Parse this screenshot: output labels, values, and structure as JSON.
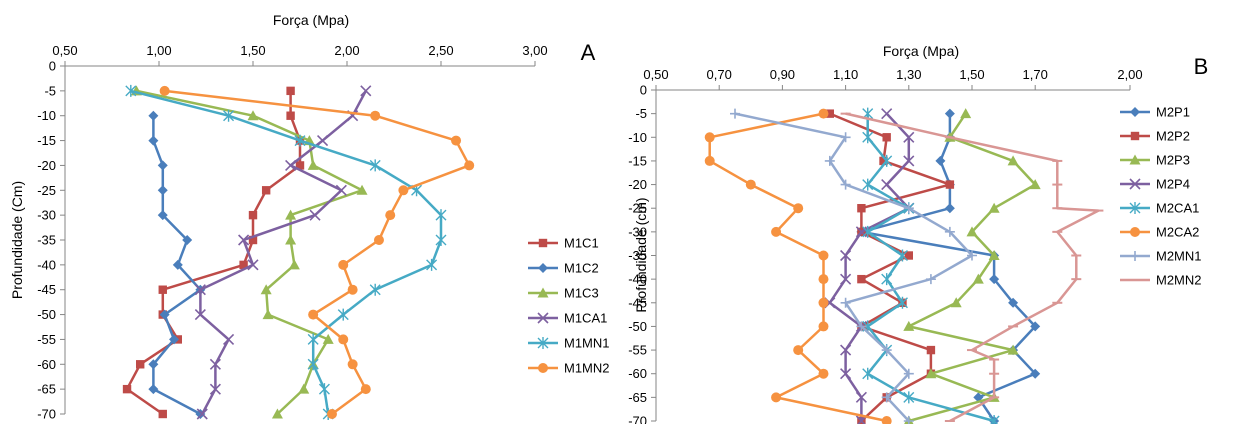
{
  "chart_data": [
    {
      "type": "line",
      "panel_label": "A",
      "xlabel": "Força (Mpa)",
      "ylabel": "Profundidade (Cm)",
      "xlim": [
        0.5,
        3.0
      ],
      "xticks": [
        "0,50",
        "1,00",
        "1,50",
        "2,00",
        "2,50",
        "3,00"
      ],
      "ylim": [
        -70,
        0
      ],
      "yticks": [
        "0",
        "-5",
        "-10",
        "-15",
        "-20",
        "-25",
        "-30",
        "-35",
        "-40",
        "-45",
        "-50",
        "-55",
        "-60",
        "-65",
        "-70"
      ],
      "legend_position": "right",
      "series": [
        {
          "name": "M1C1",
          "color": "#be4b48",
          "marker": "square",
          "points": [
            [
              1.7,
              -5
            ],
            [
              1.7,
              -10
            ],
            [
              1.75,
              -15
            ],
            [
              1.75,
              -20
            ],
            [
              1.57,
              -25
            ],
            [
              1.5,
              -30
            ],
            [
              1.5,
              -35
            ],
            [
              1.45,
              -40
            ],
            [
              1.02,
              -45
            ],
            [
              1.02,
              -50
            ],
            [
              1.1,
              -55
            ],
            [
              0.9,
              -60
            ],
            [
              0.83,
              -65
            ],
            [
              1.02,
              -70
            ]
          ]
        },
        {
          "name": "M1C2",
          "color": "#4a7ebb",
          "marker": "diamond",
          "points": [
            [
              0.97,
              -10
            ],
            [
              0.97,
              -15
            ],
            [
              1.02,
              -20
            ],
            [
              1.02,
              -25
            ],
            [
              1.02,
              -30
            ],
            [
              1.15,
              -35
            ],
            [
              1.1,
              -40
            ],
            [
              1.22,
              -45
            ],
            [
              1.03,
              -50
            ],
            [
              1.08,
              -55
            ],
            [
              0.97,
              -60
            ],
            [
              0.97,
              -65
            ],
            [
              1.22,
              -70
            ]
          ]
        },
        {
          "name": "M1C3",
          "color": "#98b954",
          "marker": "triangle",
          "points": [
            [
              0.88,
              -5
            ],
            [
              1.5,
              -10
            ],
            [
              1.8,
              -15
            ],
            [
              1.82,
              -20
            ],
            [
              2.08,
              -25
            ],
            [
              1.7,
              -30
            ],
            [
              1.7,
              -35
            ],
            [
              1.72,
              -40
            ],
            [
              1.57,
              -45
            ],
            [
              1.58,
              -50
            ],
            [
              1.9,
              -55
            ],
            [
              1.82,
              -60
            ],
            [
              1.77,
              -65
            ],
            [
              1.63,
              -70
            ]
          ]
        },
        {
          "name": "M1CA1",
          "color": "#7d60a0",
          "marker": "x",
          "points": [
            [
              2.1,
              -5
            ],
            [
              2.03,
              -10
            ],
            [
              1.87,
              -15
            ],
            [
              1.7,
              -20
            ],
            [
              1.97,
              -25
            ],
            [
              1.83,
              -30
            ],
            [
              1.45,
              -35
            ],
            [
              1.5,
              -40
            ],
            [
              1.22,
              -45
            ],
            [
              1.22,
              -50
            ],
            [
              1.37,
              -55
            ],
            [
              1.3,
              -60
            ],
            [
              1.3,
              -65
            ],
            [
              1.23,
              -70
            ]
          ]
        },
        {
          "name": "M1MN1",
          "color": "#46aac5",
          "marker": "star",
          "points": [
            [
              0.85,
              -5
            ],
            [
              1.37,
              -10
            ],
            [
              1.75,
              -15
            ],
            [
              2.15,
              -20
            ],
            [
              2.37,
              -25
            ],
            [
              2.5,
              -30
            ],
            [
              2.5,
              -35
            ],
            [
              2.45,
              -40
            ],
            [
              2.15,
              -45
            ],
            [
              1.98,
              -50
            ],
            [
              1.82,
              -55
            ],
            [
              1.82,
              -60
            ],
            [
              1.88,
              -65
            ],
            [
              1.9,
              -70
            ]
          ]
        },
        {
          "name": "M1MN2",
          "color": "#f69240",
          "marker": "circle",
          "points": [
            [
              1.03,
              -5
            ],
            [
              2.15,
              -10
            ],
            [
              2.58,
              -15
            ],
            [
              2.65,
              -20
            ],
            [
              2.3,
              -25
            ],
            [
              2.23,
              -30
            ],
            [
              2.17,
              -35
            ],
            [
              1.98,
              -40
            ],
            [
              2.03,
              -45
            ],
            [
              1.82,
              -50
            ],
            [
              1.98,
              -55
            ],
            [
              2.03,
              -60
            ],
            [
              2.1,
              -65
            ],
            [
              1.92,
              -70
            ]
          ]
        }
      ]
    },
    {
      "type": "line",
      "panel_label": "B",
      "xlabel": "Força (Mpa)",
      "ylabel": "Profundidade (cm)",
      "xlim": [
        0.5,
        2.0
      ],
      "xticks": [
        "0,50",
        "0,70",
        "0,90",
        "1,10",
        "1,30",
        "1,50",
        "1,70",
        "2,00"
      ],
      "ylim": [
        -70,
        0
      ],
      "yticks": [
        "0",
        "-5",
        "-10",
        "-15",
        "-20",
        "-25",
        "-30",
        "-35",
        "-40",
        "-45",
        "-50",
        "-55",
        "-60",
        "-65",
        "-70"
      ],
      "legend_position": "right",
      "series": [
        {
          "name": "M2P1",
          "color": "#4a7ebb",
          "marker": "diamond",
          "points": [
            [
              1.43,
              -5
            ],
            [
              1.43,
              -10
            ],
            [
              1.4,
              -15
            ],
            [
              1.43,
              -20
            ],
            [
              1.43,
              -25
            ],
            [
              1.15,
              -30
            ],
            [
              1.57,
              -35
            ],
            [
              1.57,
              -40
            ],
            [
              1.63,
              -45
            ],
            [
              1.7,
              -50
            ],
            [
              1.63,
              -55
            ],
            [
              1.7,
              -60
            ],
            [
              1.52,
              -65
            ],
            [
              1.57,
              -70
            ]
          ]
        },
        {
          "name": "M2P2",
          "color": "#be4b48",
          "marker": "square",
          "points": [
            [
              1.05,
              -5
            ],
            [
              1.23,
              -10
            ],
            [
              1.22,
              -15
            ],
            [
              1.43,
              -20
            ],
            [
              1.15,
              -25
            ],
            [
              1.15,
              -30
            ],
            [
              1.3,
              -35
            ],
            [
              1.15,
              -40
            ],
            [
              1.28,
              -45
            ],
            [
              1.15,
              -50
            ],
            [
              1.37,
              -55
            ],
            [
              1.37,
              -60
            ],
            [
              1.23,
              -65
            ],
            [
              1.15,
              -70
            ]
          ]
        },
        {
          "name": "M2P3",
          "color": "#98b954",
          "marker": "triangle",
          "points": [
            [
              1.48,
              -5
            ],
            [
              1.43,
              -10
            ],
            [
              1.63,
              -15
            ],
            [
              1.7,
              -20
            ],
            [
              1.57,
              -25
            ],
            [
              1.5,
              -30
            ],
            [
              1.57,
              -35
            ],
            [
              1.52,
              -40
            ],
            [
              1.45,
              -45
            ],
            [
              1.3,
              -50
            ],
            [
              1.63,
              -55
            ],
            [
              1.37,
              -60
            ],
            [
              1.57,
              -65
            ],
            [
              1.3,
              -70
            ]
          ]
        },
        {
          "name": "M2P4",
          "color": "#7d60a0",
          "marker": "x",
          "points": [
            [
              1.23,
              -5
            ],
            [
              1.3,
              -10
            ],
            [
              1.3,
              -15
            ],
            [
              1.23,
              -20
            ],
            [
              1.3,
              -25
            ],
            [
              1.15,
              -30
            ],
            [
              1.1,
              -35
            ],
            [
              1.1,
              -40
            ],
            [
              1.05,
              -45
            ],
            [
              1.15,
              -50
            ],
            [
              1.1,
              -55
            ],
            [
              1.1,
              -60
            ],
            [
              1.15,
              -65
            ],
            [
              1.15,
              -70
            ]
          ]
        },
        {
          "name": "M2CA1",
          "color": "#46aac5",
          "marker": "star",
          "points": [
            [
              1.17,
              -5
            ],
            [
              1.17,
              -10
            ],
            [
              1.23,
              -15
            ],
            [
              1.17,
              -20
            ],
            [
              1.3,
              -25
            ],
            [
              1.17,
              -30
            ],
            [
              1.28,
              -35
            ],
            [
              1.23,
              -40
            ],
            [
              1.28,
              -45
            ],
            [
              1.17,
              -50
            ],
            [
              1.23,
              -55
            ],
            [
              1.17,
              -60
            ],
            [
              1.3,
              -65
            ],
            [
              1.57,
              -70
            ]
          ]
        },
        {
          "name": "M2CA2",
          "color": "#f69240",
          "marker": "circle",
          "points": [
            [
              1.03,
              -5
            ],
            [
              0.67,
              -10
            ],
            [
              0.67,
              -15
            ],
            [
              0.8,
              -20
            ],
            [
              0.95,
              -25
            ],
            [
              0.88,
              -30
            ],
            [
              1.03,
              -35
            ],
            [
              1.03,
              -40
            ],
            [
              1.03,
              -45
            ],
            [
              1.03,
              -50
            ],
            [
              0.95,
              -55
            ],
            [
              1.03,
              -60
            ],
            [
              0.88,
              -65
            ],
            [
              1.23,
              -70
            ]
          ]
        },
        {
          "name": "M2MN1",
          "color": "#93a9cf",
          "marker": "plus",
          "points": [
            [
              0.75,
              -5
            ],
            [
              1.1,
              -10
            ],
            [
              1.05,
              -15
            ],
            [
              1.1,
              -20
            ],
            [
              1.3,
              -25
            ],
            [
              1.43,
              -30
            ],
            [
              1.5,
              -35
            ],
            [
              1.37,
              -40
            ],
            [
              1.1,
              -45
            ],
            [
              1.15,
              -50
            ],
            [
              1.23,
              -55
            ],
            [
              1.3,
              -60
            ],
            [
              1.23,
              -65
            ],
            [
              1.3,
              -70
            ]
          ]
        },
        {
          "name": "M2MN2",
          "color": "#d99694",
          "marker": "dash",
          "points": [
            [
              1.1,
              -5
            ],
            [
              1.43,
              -10
            ],
            [
              1.77,
              -15
            ],
            [
              1.77,
              -20
            ],
            [
              1.77,
              -25
            ],
            [
              1.9,
              -25.5
            ],
            [
              1.77,
              -30
            ],
            [
              1.83,
              -35
            ],
            [
              1.83,
              -40
            ],
            [
              1.77,
              -45
            ],
            [
              1.63,
              -50
            ],
            [
              1.5,
              -55
            ],
            [
              1.57,
              -57
            ],
            [
              1.57,
              -60
            ],
            [
              1.57,
              -65
            ],
            [
              1.43,
              -70
            ]
          ]
        }
      ]
    }
  ]
}
